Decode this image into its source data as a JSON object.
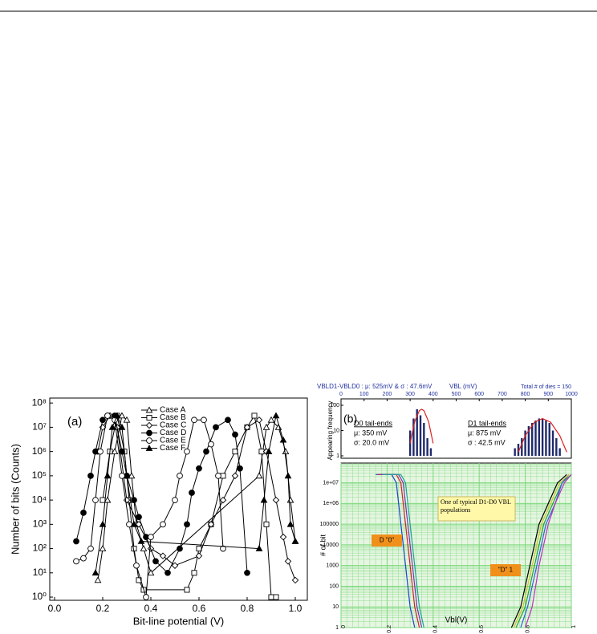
{
  "chart_data": [
    {
      "type": "line",
      "panel_label": "(a)",
      "x_label": "Bit-line potential (V)",
      "y_label": "Number of bits (Counts)",
      "xlim": [
        -0.02,
        1.05
      ],
      "xticks": [
        {
          "value": 0,
          "label": "0.0"
        },
        {
          "value": 0.2,
          "label": "0.2"
        },
        {
          "value": 0.4,
          "label": "0.4"
        },
        {
          "value": 0.6,
          "label": "0.6"
        },
        {
          "value": 0.8,
          "label": "0.8"
        },
        {
          "value": 1,
          "label": "1.0"
        }
      ],
      "ylim": [
        0.74,
        160000000
      ],
      "yscale": "log",
      "yticks": [
        {
          "value": 1,
          "label": "10⁰"
        },
        {
          "value": 10,
          "label": "10¹"
        },
        {
          "value": 100,
          "label": "10²"
        },
        {
          "value": 1000,
          "label": "10³"
        },
        {
          "value": 10000,
          "label": "10⁴"
        },
        {
          "value": 100000,
          "label": "10⁵"
        },
        {
          "value": 1000000,
          "label": "10⁶"
        },
        {
          "value": 10000000,
          "label": "10⁷"
        },
        {
          "value": 100000000,
          "label": "10⁸"
        }
      ],
      "series": [
        {
          "name": "Case A",
          "marker": "open-triangle",
          "color": "#000000",
          "x": [
            0.18,
            0.2,
            0.22,
            0.25,
            0.28,
            0.3,
            0.32,
            0.34,
            0.37,
            0.4,
            0.85,
            0.88,
            0.9,
            0.93,
            0.96,
            0.98,
            1.0
          ],
          "values": [
            5,
            100,
            10000,
            1000000,
            30000000,
            20000000,
            100000,
            1000,
            100,
            10,
            100000,
            10000000,
            20000000,
            10000000,
            1000000,
            10000,
            200
          ]
        },
        {
          "name": "Case B",
          "marker": "open-square",
          "color": "#000000",
          "x": [
            0.2,
            0.23,
            0.26,
            0.29,
            0.31,
            0.33,
            0.35,
            0.37,
            0.55,
            0.58,
            0.6,
            0.65,
            0.7,
            0.75,
            0.8,
            0.83,
            0.86,
            0.88,
            0.9,
            0.92
          ],
          "values": [
            10000,
            1000000,
            30000000,
            1000000,
            10000,
            100,
            5,
            2,
            2,
            10,
            100,
            1000,
            100000,
            1000000,
            10000000,
            30000000,
            1000000,
            1000,
            1,
            1
          ]
        },
        {
          "name": "Case C",
          "marker": "open-diamond",
          "color": "#000000",
          "x": [
            0.18,
            0.2,
            0.23,
            0.26,
            0.3,
            0.35,
            0.4,
            0.45,
            0.5,
            0.6,
            0.65,
            0.7,
            0.75,
            0.8,
            0.85,
            0.88,
            0.92,
            0.95,
            0.97,
            1.0
          ],
          "values": [
            1000000,
            10000000,
            30000000,
            10000000,
            10000,
            1000,
            100,
            50,
            20,
            50,
            1000,
            10000,
            100000,
            10000000,
            20000000,
            1000000,
            10000,
            300,
            30,
            5
          ]
        },
        {
          "name": "Case D",
          "marker": "filled-circle",
          "color": "#000000",
          "x": [
            0.09,
            0.12,
            0.15,
            0.17,
            0.2,
            0.22,
            0.25,
            0.28,
            0.3,
            0.33,
            0.35,
            0.38,
            0.42,
            0.47,
            0.52,
            0.55,
            0.57,
            0.6,
            0.63,
            0.67,
            0.72,
            0.75,
            0.77,
            0.8
          ],
          "values": [
            200,
            3000,
            100000,
            1000000,
            20000000,
            30000000,
            30000000,
            1000000,
            100000,
            10000,
            2000,
            300,
            30,
            10,
            100,
            1000,
            20000,
            200000,
            1000000,
            10000000,
            20000000,
            5000000,
            200000,
            10
          ]
        },
        {
          "name": "Case E",
          "marker": "open-circle",
          "color": "#000000",
          "x": [
            0.09,
            0.12,
            0.15,
            0.17,
            0.19,
            0.22,
            0.25,
            0.28,
            0.31,
            0.34,
            0.38,
            0.4,
            0.45,
            0.5,
            0.52,
            0.55,
            0.58,
            0.62,
            0.65,
            0.68,
            0.7
          ],
          "values": [
            30,
            40,
            100,
            10000,
            1000000,
            30000000,
            20000000,
            100000,
            1000,
            20,
            1,
            300,
            1000,
            10000,
            100000,
            1000000,
            20000000,
            20000000,
            2000000,
            100000,
            100
          ]
        },
        {
          "name": "Case F",
          "marker": "filled-triangle",
          "color": "#000000",
          "x": [
            0.17,
            0.2,
            0.22,
            0.24,
            0.26,
            0.28,
            0.3,
            0.33,
            0.36,
            0.85,
            0.87,
            0.89,
            0.92,
            0.95,
            0.97,
            0.98,
            1.0
          ],
          "values": [
            10,
            1000,
            100000,
            10000000,
            30000000,
            10000000,
            100000,
            1000,
            200,
            100,
            10000,
            1000000,
            30000000,
            3000000,
            100000,
            1000,
            200
          ]
        }
      ]
    },
    {
      "type": "bar",
      "panel_label": "(b)",
      "title": "VBLD1-VBLD0 : μ: 525mV & σ : 47.6mV",
      "x_label": "VBL (mV)",
      "note": "Total # of dies = 150",
      "y_label": "Appearing frequency",
      "xlim": [
        0,
        1000
      ],
      "xticks": [
        0,
        100,
        200,
        300,
        400,
        500,
        600,
        700,
        800,
        900,
        1000
      ],
      "ylim": [
        1,
        100
      ],
      "yscale": "log",
      "yticks": [
        1,
        10,
        100
      ],
      "color": "#1f2a6b",
      "x": [
        300,
        315,
        330,
        345,
        360,
        375,
        390,
        755,
        770,
        785,
        800,
        815,
        830,
        845,
        860,
        875,
        890,
        905,
        920,
        935,
        950
      ],
      "values": [
        10,
        30,
        70,
        40,
        20,
        5,
        2,
        2,
        3,
        5,
        10,
        15,
        20,
        25,
        30,
        30,
        25,
        20,
        10,
        5,
        2
      ],
      "fits": [
        {
          "color": "#e02020",
          "x": [
            300,
            320,
            340,
            350,
            360,
            380,
            400
          ],
          "values": [
            3.1,
            22.6,
            61.5,
            70,
            61.5,
            22.6,
            3.1
          ]
        },
        {
          "color": "#e02020",
          "x": [
            770,
            800,
            840,
            875,
            910,
            950,
            980
          ],
          "values": [
            1.4,
            6.3,
            21.4,
            30,
            21.4,
            6.3,
            1.4
          ]
        }
      ],
      "annotations": [
        [
          "D0 tail-ends",
          "μ: 350 mV",
          "σ: 20.0 mV"
        ],
        [
          "D1 tail-ends",
          "μ: 875 mV",
          "σ : 42.5 mV"
        ]
      ]
    },
    {
      "type": "line",
      "x_label": "Vbl(V)",
      "y_label": "# of bit",
      "grid": true,
      "grid_color": "#7dd87d",
      "xlim": [
        0,
        1
      ],
      "xticks": [
        0,
        0.2,
        0.4,
        0.6,
        0.8,
        1
      ],
      "ylim": [
        1,
        90000000
      ],
      "yscale": "log",
      "yticks": [
        1,
        10,
        100,
        1000,
        10000,
        100000,
        {
          "value": 1000000,
          "label": "1e+06"
        },
        {
          "value": 10000000,
          "label": "1e+07"
        }
      ],
      "annotations": [
        "One of typical D1-D0 VBL populations",
        "D \"0\"",
        "\"D\" 1"
      ],
      "series": [
        {
          "color": "#2040d0",
          "x": [
            0.15,
            0.22,
            0.24,
            0.26,
            0.28,
            0.3,
            0.32
          ],
          "values": [
            25000000,
            25000000,
            10000000,
            100000,
            1000,
            10,
            1
          ]
        },
        {
          "color": "#d02030",
          "x": [
            0.16,
            0.24,
            0.26,
            0.28,
            0.3,
            0.32,
            0.34
          ],
          "values": [
            25000000,
            25000000,
            10000000,
            100000,
            1000,
            10,
            1
          ]
        },
        {
          "color": "#8030b0",
          "x": [
            0.17,
            0.25,
            0.27,
            0.29,
            0.31,
            0.33,
            0.35
          ],
          "values": [
            25000000,
            25000000,
            10000000,
            100000,
            1000,
            10,
            1
          ]
        },
        {
          "color": "#20a0a0",
          "x": [
            0.18,
            0.26,
            0.28,
            0.3,
            0.32,
            0.34,
            0.36
          ],
          "values": [
            25000000,
            25000000,
            10000000,
            100000,
            1000,
            10,
            1
          ]
        },
        {
          "color": "#000000",
          "x": [
            0.74,
            0.78,
            0.82,
            0.86,
            0.9,
            0.94,
            0.98
          ],
          "values": [
            1,
            10,
            1000,
            100000,
            1000000,
            10000000,
            25000000
          ]
        },
        {
          "color": "#20a040",
          "x": [
            0.76,
            0.8,
            0.84,
            0.88,
            0.92,
            0.96,
            1.0
          ],
          "values": [
            1,
            10,
            1000,
            100000,
            1000000,
            10000000,
            25000000
          ]
        },
        {
          "color": "#3060e0",
          "x": [
            0.78,
            0.81,
            0.85,
            0.89,
            0.93,
            0.96,
            0.99
          ],
          "values": [
            1,
            10,
            1000,
            100000,
            1000000,
            10000000,
            25000000
          ]
        },
        {
          "color": "#c030c0",
          "x": [
            0.8,
            0.83,
            0.86,
            0.9,
            0.93,
            0.97,
            1.0
          ],
          "values": [
            1,
            10,
            1000,
            100000,
            1000000,
            10000000,
            25000000
          ]
        },
        {
          "color": "#d0c020",
          "x": [
            0.75,
            0.79,
            0.83,
            0.87,
            0.91,
            0.95,
            0.99
          ],
          "values": [
            1,
            10,
            1000,
            100000,
            1000000,
            10000000,
            25000000
          ]
        }
      ]
    }
  ]
}
